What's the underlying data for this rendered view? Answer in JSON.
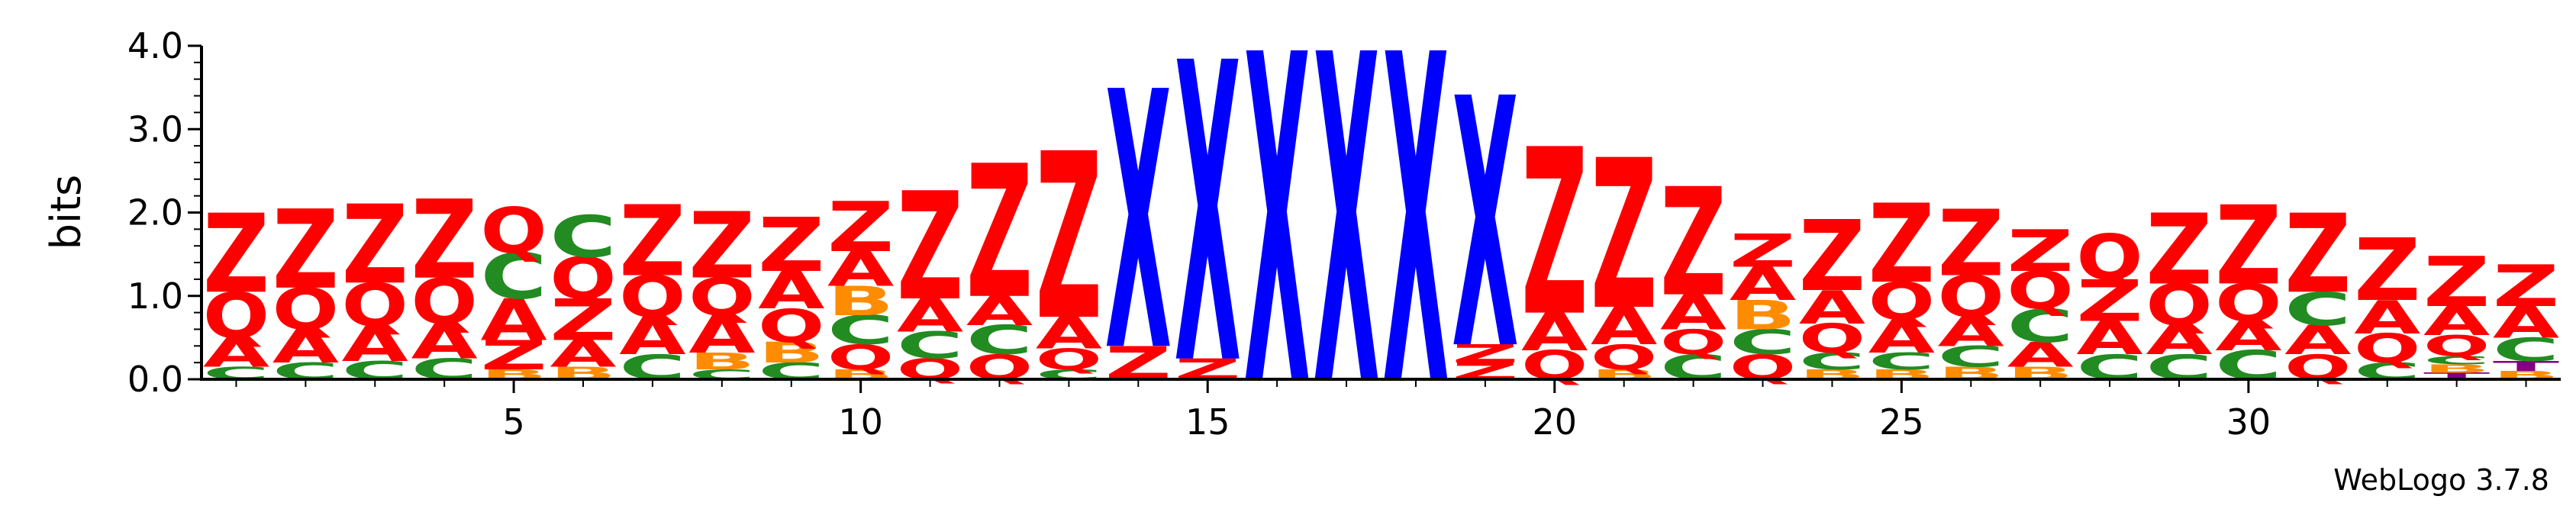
{
  "chart_data": {
    "type": "sequence-logo",
    "ylabel": "bits",
    "ylim": [
      0,
      4.0
    ],
    "yticks": [
      "0.0",
      "1.0",
      "2.0",
      "3.0",
      "4.0"
    ],
    "xlim": [
      0.5,
      34.5
    ],
    "xticks": [
      5,
      10,
      15,
      20,
      25,
      30
    ],
    "footer": "WebLogo 3.7.8",
    "colors": {
      "Z": "#ff0000",
      "Q": "#ff0000",
      "A": "#ff0000",
      "C": "#228b22",
      "B": "#ff8c00",
      "X": "#0000ff",
      "T": "#800080"
    },
    "columns": [
      {
        "pos": 1,
        "stack": [
          [
            "C",
            0.15
          ],
          [
            "A",
            0.35
          ],
          [
            "Q",
            0.55
          ],
          [
            "Z",
            0.95
          ]
        ]
      },
      {
        "pos": 2,
        "stack": [
          [
            "C",
            0.2
          ],
          [
            "A",
            0.4
          ],
          [
            "Q",
            0.5
          ],
          [
            "Z",
            0.95
          ]
        ]
      },
      {
        "pos": 3,
        "stack": [
          [
            "C",
            0.22
          ],
          [
            "A",
            0.42
          ],
          [
            "Q",
            0.52
          ],
          [
            "Z",
            0.95
          ]
        ]
      },
      {
        "pos": 4,
        "stack": [
          [
            "C",
            0.25
          ],
          [
            "A",
            0.42
          ],
          [
            "Q",
            0.55
          ],
          [
            "Z",
            0.95
          ]
        ]
      },
      {
        "pos": 5,
        "stack": [
          [
            "B",
            0.12
          ],
          [
            "Z",
            0.35
          ],
          [
            "A",
            0.5
          ],
          [
            "C",
            0.55
          ],
          [
            "Q",
            0.55
          ]
        ]
      },
      {
        "pos": 6,
        "stack": [
          [
            "B",
            0.15
          ],
          [
            "A",
            0.32
          ],
          [
            "Z",
            0.5
          ],
          [
            "Q",
            0.5
          ],
          [
            "C",
            0.5
          ]
        ]
      },
      {
        "pos": 7,
        "stack": [
          [
            "C",
            0.3
          ],
          [
            "A",
            0.45
          ],
          [
            "Q",
            0.5
          ],
          [
            "Z",
            0.85
          ]
        ]
      },
      {
        "pos": 8,
        "stack": [
          [
            "C",
            0.12
          ],
          [
            "B",
            0.2
          ],
          [
            "A",
            0.45
          ],
          [
            "Q",
            0.45
          ],
          [
            "Z",
            0.8
          ]
        ]
      },
      {
        "pos": 9,
        "stack": [
          [
            "C",
            0.2
          ],
          [
            "B",
            0.25
          ],
          [
            "Q",
            0.4
          ],
          [
            "A",
            0.45
          ],
          [
            "Z",
            0.65
          ]
        ]
      },
      {
        "pos": 10,
        "stack": [
          [
            "B",
            0.12
          ],
          [
            "Q",
            0.3
          ],
          [
            "C",
            0.35
          ],
          [
            "B",
            0.35
          ],
          [
            "A",
            0.42
          ],
          [
            "Z",
            0.6
          ]
        ]
      },
      {
        "pos": 11,
        "stack": [
          [
            "Q",
            0.25
          ],
          [
            "C",
            0.32
          ],
          [
            "A",
            0.4
          ],
          [
            "Z",
            1.3
          ]
        ]
      },
      {
        "pos": 12,
        "stack": [
          [
            "Q",
            0.3
          ],
          [
            "C",
            0.35
          ],
          [
            "A",
            0.35
          ],
          [
            "Z",
            1.6
          ]
        ]
      },
      {
        "pos": 13,
        "stack": [
          [
            "C",
            0.12
          ],
          [
            "Q",
            0.25
          ],
          [
            "A",
            0.38
          ],
          [
            "Z",
            2.0
          ]
        ]
      },
      {
        "pos": 14,
        "stack": [
          [
            "Z",
            0.4
          ],
          [
            "X",
            3.1
          ]
        ]
      },
      {
        "pos": 15,
        "stack": [
          [
            "Z",
            0.25
          ],
          [
            "X",
            3.6
          ]
        ]
      },
      {
        "pos": 16,
        "stack": [
          [
            "X",
            3.95
          ]
        ]
      },
      {
        "pos": 17,
        "stack": [
          [
            "X",
            3.95
          ]
        ]
      },
      {
        "pos": 18,
        "stack": [
          [
            "X",
            3.95
          ]
        ]
      },
      {
        "pos": 19,
        "stack": [
          [
            "Z",
            0.2
          ],
          [
            "Z",
            0.22
          ],
          [
            "X",
            3.0
          ]
        ]
      },
      {
        "pos": 20,
        "stack": [
          [
            "Q",
            0.35
          ],
          [
            "A",
            0.45
          ],
          [
            "Z",
            2.0
          ]
        ]
      },
      {
        "pos": 21,
        "stack": [
          [
            "B",
            0.12
          ],
          [
            "Q",
            0.3
          ],
          [
            "A",
            0.45
          ],
          [
            "Z",
            1.8
          ]
        ]
      },
      {
        "pos": 22,
        "stack": [
          [
            "C",
            0.3
          ],
          [
            "Q",
            0.3
          ],
          [
            "A",
            0.42
          ],
          [
            "Z",
            1.3
          ]
        ]
      },
      {
        "pos": 23,
        "stack": [
          [
            "Q",
            0.3
          ],
          [
            "C",
            0.3
          ],
          [
            "B",
            0.35
          ],
          [
            "A",
            0.4
          ],
          [
            "Z",
            0.4
          ]
        ]
      },
      {
        "pos": 24,
        "stack": [
          [
            "B",
            0.12
          ],
          [
            "C",
            0.2
          ],
          [
            "Q",
            0.35
          ],
          [
            "A",
            0.4
          ],
          [
            "Z",
            0.85
          ]
        ]
      },
      {
        "pos": 25,
        "stack": [
          [
            "B",
            0.12
          ],
          [
            "C",
            0.2
          ],
          [
            "A",
            0.4
          ],
          [
            "Q",
            0.45
          ],
          [
            "Z",
            0.95
          ]
        ]
      },
      {
        "pos": 26,
        "stack": [
          [
            "B",
            0.15
          ],
          [
            "C",
            0.25
          ],
          [
            "A",
            0.35
          ],
          [
            "Q",
            0.5
          ],
          [
            "Z",
            0.8
          ]
        ]
      },
      {
        "pos": 27,
        "stack": [
          [
            "B",
            0.15
          ],
          [
            "A",
            0.3
          ],
          [
            "C",
            0.4
          ],
          [
            "Q",
            0.45
          ],
          [
            "Z",
            0.5
          ]
        ]
      },
      {
        "pos": 28,
        "stack": [
          [
            "C",
            0.3
          ],
          [
            "A",
            0.4
          ],
          [
            "Z",
            0.5
          ],
          [
            "Q",
            0.55
          ]
        ]
      },
      {
        "pos": 29,
        "stack": [
          [
            "C",
            0.3
          ],
          [
            "A",
            0.35
          ],
          [
            "Q",
            0.5
          ],
          [
            "Z",
            0.85
          ]
        ]
      },
      {
        "pos": 30,
        "stack": [
          [
            "C",
            0.35
          ],
          [
            "A",
            0.35
          ],
          [
            "Q",
            0.45
          ],
          [
            "Z",
            0.95
          ]
        ]
      },
      {
        "pos": 31,
        "stack": [
          [
            "Q",
            0.3
          ],
          [
            "A",
            0.35
          ],
          [
            "C",
            0.4
          ],
          [
            "Z",
            0.95
          ]
        ]
      },
      {
        "pos": 32,
        "stack": [
          [
            "C",
            0.2
          ],
          [
            "Q",
            0.35
          ],
          [
            "A",
            0.4
          ],
          [
            "Z",
            0.75
          ]
        ]
      },
      {
        "pos": 33,
        "stack": [
          [
            "T",
            0.08
          ],
          [
            "B",
            0.1
          ],
          [
            "C",
            0.1
          ],
          [
            "Q",
            0.25
          ],
          [
            "A",
            0.35
          ],
          [
            "Z",
            0.6
          ]
        ]
      },
      {
        "pos": 34,
        "stack": [
          [
            "B",
            0.1
          ],
          [
            "T",
            0.12
          ],
          [
            "C",
            0.28
          ],
          [
            "A",
            0.38
          ],
          [
            "Z",
            0.5
          ]
        ]
      }
    ]
  }
}
